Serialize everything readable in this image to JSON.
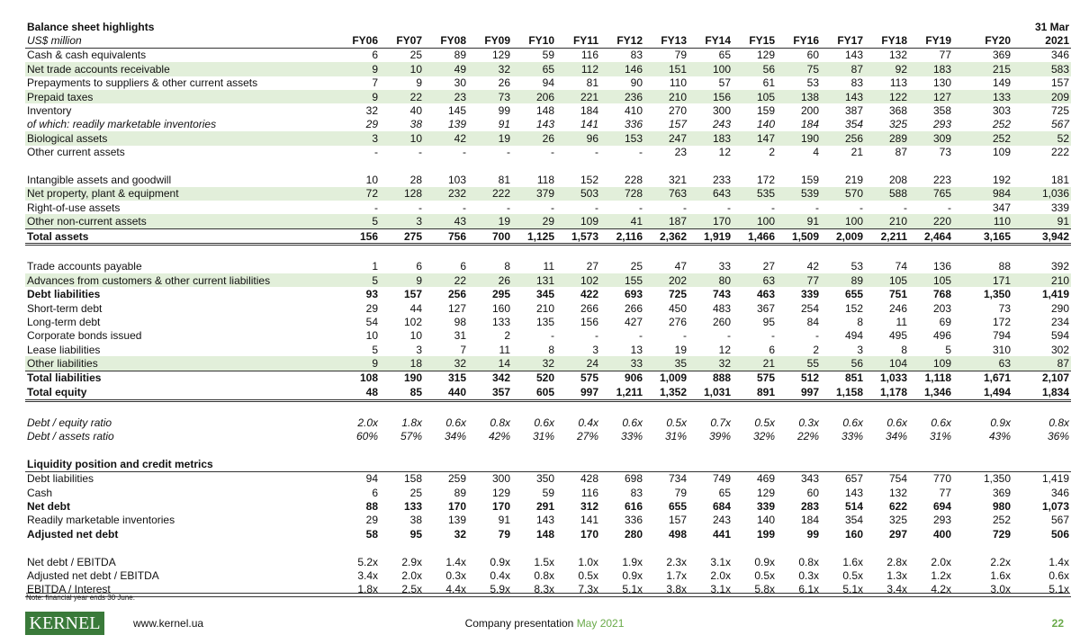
{
  "title": "Balance sheet highlights",
  "unit": "US$ million",
  "columns": [
    "FY06",
    "FY07",
    "FY08",
    "FY09",
    "FY10",
    "FY11",
    "FY12",
    "FY13",
    "FY14",
    "FY15",
    "FY16",
    "FY17",
    "FY18",
    "FY19",
    "FY20",
    [
      "31 Mar",
      "2021"
    ]
  ],
  "groups": [
    {
      "rows": [
        {
          "label": "Cash & cash equivalents",
          "values": [
            "6",
            "25",
            "89",
            "129",
            "59",
            "116",
            "83",
            "79",
            "65",
            "129",
            "60",
            "143",
            "132",
            "77",
            "369",
            "346"
          ]
        },
        {
          "label": "Net trade accounts receivable",
          "values": [
            "9",
            "10",
            "49",
            "32",
            "65",
            "112",
            "146",
            "151",
            "100",
            "56",
            "75",
            "87",
            "92",
            "183",
            "215",
            "583"
          ]
        },
        {
          "label": "Prepayments to suppliers & other current assets",
          "values": [
            "7",
            "9",
            "30",
            "26",
            "94",
            "81",
            "90",
            "110",
            "57",
            "61",
            "53",
            "83",
            "113",
            "130",
            "149",
            "157"
          ]
        },
        {
          "label": "Prepaid taxes",
          "values": [
            "9",
            "22",
            "23",
            "73",
            "206",
            "221",
            "236",
            "210",
            "156",
            "105",
            "138",
            "143",
            "122",
            "127",
            "133",
            "209"
          ]
        },
        {
          "label": "Inventory",
          "values": [
            "32",
            "40",
            "145",
            "99",
            "148",
            "184",
            "410",
            "270",
            "300",
            "159",
            "200",
            "387",
            "368",
            "358",
            "303",
            "725"
          ]
        },
        {
          "label": "of which: readily marketable inventories",
          "values": [
            "29",
            "38",
            "139",
            "91",
            "143",
            "141",
            "336",
            "157",
            "243",
            "140",
            "184",
            "354",
            "325",
            "293",
            "252",
            "567"
          ]
        },
        {
          "label": "Biological assets",
          "values": [
            "3",
            "10",
            "42",
            "19",
            "26",
            "96",
            "153",
            "247",
            "183",
            "147",
            "190",
            "256",
            "289",
            "309",
            "252",
            "52"
          ]
        },
        {
          "label": "Other current assets",
          "values": [
            "-",
            "-",
            "-",
            "-",
            "-",
            "-",
            "-",
            "23",
            "12",
            "2",
            "4",
            "21",
            "87",
            "73",
            "109",
            "222"
          ]
        }
      ]
    },
    {
      "rows": [
        {
          "label": "Intangible assets and goodwill",
          "values": [
            "10",
            "28",
            "103",
            "81",
            "118",
            "152",
            "228",
            "321",
            "233",
            "172",
            "159",
            "219",
            "208",
            "223",
            "192",
            "181"
          ]
        },
        {
          "label": "Net property, plant & equipment",
          "values": [
            "72",
            "128",
            "232",
            "222",
            "379",
            "503",
            "728",
            "763",
            "643",
            "535",
            "539",
            "570",
            "588",
            "765",
            "984",
            "1,036"
          ]
        },
        {
          "label": "Right-of-use assets",
          "values": [
            "-",
            "-",
            "-",
            "-",
            "-",
            "-",
            "-",
            "-",
            "-",
            "-",
            "-",
            "-",
            "-",
            "-",
            "347",
            "339"
          ]
        },
        {
          "label": "Other non-current assets",
          "values": [
            "5",
            "3",
            "43",
            "19",
            "29",
            "109",
            "41",
            "187",
            "170",
            "100",
            "91",
            "100",
            "210",
            "220",
            "110",
            "91"
          ]
        },
        {
          "label": "Total assets",
          "values": [
            "156",
            "275",
            "756",
            "700",
            "1,125",
            "1,573",
            "2,116",
            "2,362",
            "1,919",
            "1,466",
            "1,509",
            "2,009",
            "2,211",
            "2,464",
            "3,165",
            "3,942"
          ]
        }
      ]
    },
    {
      "rows": [
        {
          "label": "Trade accounts payable",
          "values": [
            "1",
            "6",
            "6",
            "8",
            "11",
            "27",
            "25",
            "47",
            "33",
            "27",
            "42",
            "53",
            "74",
            "136",
            "88",
            "392"
          ]
        },
        {
          "label": "Advances from customers & other current liabilities",
          "values": [
            "5",
            "9",
            "22",
            "26",
            "131",
            "102",
            "155",
            "202",
            "80",
            "63",
            "77",
            "89",
            "105",
            "105",
            "171",
            "210"
          ]
        },
        {
          "label": "Debt liabilities",
          "values": [
            "93",
            "157",
            "256",
            "295",
            "345",
            "422",
            "693",
            "725",
            "743",
            "463",
            "339",
            "655",
            "751",
            "768",
            "1,350",
            "1,419"
          ]
        },
        {
          "label": "Short-term debt",
          "values": [
            "29",
            "44",
            "127",
            "160",
            "210",
            "266",
            "266",
            "450",
            "483",
            "367",
            "254",
            "152",
            "246",
            "203",
            "73",
            "290"
          ]
        },
        {
          "label": "Long-term debt",
          "values": [
            "54",
            "102",
            "98",
            "133",
            "135",
            "156",
            "427",
            "276",
            "260",
            "95",
            "84",
            "8",
            "11",
            "69",
            "172",
            "234"
          ]
        },
        {
          "label": "Corporate bonds issued",
          "values": [
            "10",
            "10",
            "31",
            "2",
            "-",
            "-",
            "-",
            "-",
            "-",
            "-",
            "-",
            "494",
            "495",
            "496",
            "794",
            "594"
          ]
        },
        {
          "label": "Lease liabilities",
          "values": [
            "5",
            "3",
            "7",
            "11",
            "8",
            "3",
            "13",
            "19",
            "12",
            "6",
            "2",
            "3",
            "8",
            "5",
            "310",
            "302"
          ]
        },
        {
          "label": "Other liabilities",
          "values": [
            "9",
            "18",
            "32",
            "14",
            "32",
            "24",
            "33",
            "35",
            "32",
            "21",
            "55",
            "56",
            "104",
            "109",
            "63",
            "87"
          ]
        },
        {
          "label": "Total liabilities",
          "values": [
            "108",
            "190",
            "315",
            "342",
            "520",
            "575",
            "906",
            "1,009",
            "888",
            "575",
            "512",
            "851",
            "1,033",
            "1,118",
            "1,671",
            "2,107"
          ]
        },
        {
          "label": "Total equity",
          "values": [
            "48",
            "85",
            "440",
            "357",
            "605",
            "997",
            "1,211",
            "1,352",
            "1,031",
            "891",
            "997",
            "1,158",
            "1,178",
            "1,346",
            "1,494",
            "1,834"
          ]
        }
      ]
    },
    {
      "rows": [
        {
          "label": "Debt / equity ratio",
          "values": [
            "2.0x",
            "1.8x",
            "0.6x",
            "0.8x",
            "0.6x",
            "0.4x",
            "0.6x",
            "0.5x",
            "0.7x",
            "0.5x",
            "0.3x",
            "0.6x",
            "0.6x",
            "0.6x",
            "0.9x",
            "0.8x"
          ]
        },
        {
          "label": "Debt / assets ratio",
          "values": [
            "60%",
            "57%",
            "34%",
            "42%",
            "31%",
            "27%",
            "33%",
            "31%",
            "39%",
            "32%",
            "22%",
            "33%",
            "34%",
            "31%",
            "43%",
            "36%"
          ]
        }
      ]
    },
    {
      "title": "Liquidity position and credit metrics",
      "rows": [
        {
          "label": "Debt liabilities",
          "values": [
            "94",
            "158",
            "259",
            "300",
            "350",
            "428",
            "698",
            "734",
            "749",
            "469",
            "343",
            "657",
            "754",
            "770",
            "1,350",
            "1,419"
          ]
        },
        {
          "label": "Cash",
          "values": [
            "6",
            "25",
            "89",
            "129",
            "59",
            "116",
            "83",
            "79",
            "65",
            "129",
            "60",
            "143",
            "132",
            "77",
            "369",
            "346"
          ]
        },
        {
          "label": "Net debt",
          "values": [
            "88",
            "133",
            "170",
            "170",
            "291",
            "312",
            "616",
            "655",
            "684",
            "339",
            "283",
            "514",
            "622",
            "694",
            "980",
            "1,073"
          ]
        },
        {
          "label": "Readily marketable inventories",
          "values": [
            "29",
            "38",
            "139",
            "91",
            "143",
            "141",
            "336",
            "157",
            "243",
            "140",
            "184",
            "354",
            "325",
            "293",
            "252",
            "567"
          ]
        },
        {
          "label": "Adjusted net debt",
          "values": [
            "58",
            "95",
            "32",
            "79",
            "148",
            "170",
            "280",
            "498",
            "441",
            "199",
            "99",
            "160",
            "297",
            "400",
            "729",
            "506"
          ]
        }
      ]
    },
    {
      "rows": [
        {
          "label": "Net debt / EBITDA",
          "values": [
            "5.2x",
            "2.9x",
            "1.4x",
            "0.9x",
            "1.5x",
            "1.0x",
            "1.9x",
            "2.3x",
            "3.1x",
            "0.9x",
            "0.8x",
            "1.6x",
            "2.8x",
            "2.0x",
            "2.2x",
            "1.4x"
          ]
        },
        {
          "label": "Adjusted net debt / EBITDA",
          "values": [
            "3.4x",
            "2.0x",
            "0.3x",
            "0.4x",
            "0.8x",
            "0.5x",
            "0.9x",
            "1.7x",
            "2.0x",
            "0.5x",
            "0.3x",
            "0.5x",
            "1.3x",
            "1.2x",
            "1.6x",
            "0.6x"
          ]
        },
        {
          "label": "EBITDA / Interest",
          "values": [
            "1.8x",
            "2.5x",
            "4.4x",
            "5.9x",
            "8.3x",
            "7.3x",
            "5.1x",
            "3.8x",
            "3.1x",
            "5.8x",
            "6.1x",
            "5.1x",
            "3.4x",
            "4.2x",
            "3.0x",
            "5.1x"
          ]
        }
      ]
    }
  ],
  "note": "Note: financial year ends 30 June.",
  "footer": {
    "logo": "KERNEL",
    "url": "www.kernel.ua",
    "presentation": "Company presentation",
    "date": "May 2021",
    "page": "22"
  }
}
